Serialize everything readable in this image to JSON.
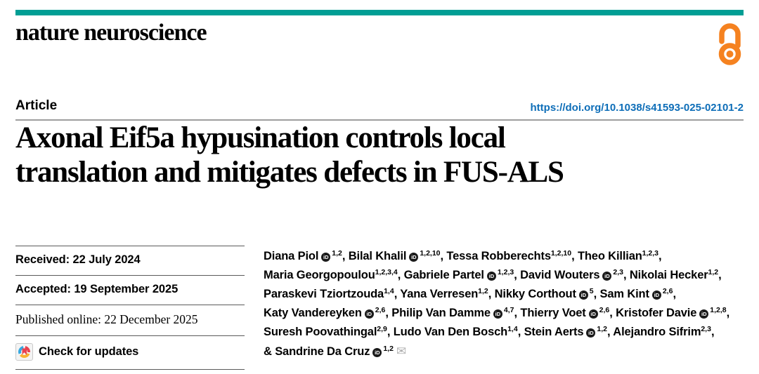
{
  "masthead": {
    "journal": "nature neuroscience"
  },
  "article": {
    "kicker": "Article",
    "doi": "https://doi.org/10.1038/s41593-025-02101-2",
    "title": "Axonal Eif5a hypusination controls local\ntranslation and mitigates defects in FUS-ALS"
  },
  "dates": [
    {
      "label": "Received",
      "value": "22 July 2024",
      "serif": false
    },
    {
      "label": "Accepted",
      "value": "19 September 2025",
      "serif": false
    },
    {
      "label": "Published online",
      "value": "22 December 2025",
      "serif": true
    }
  ],
  "check_updates": {
    "label": "Check for updates"
  },
  "authors_meta": {
    "separator": ", ",
    "last_author_prefix": "& ",
    "orcid_icon_text": "iD",
    "email_icon": "✉"
  },
  "authors": [
    {
      "name": "Diana Piol",
      "orcid": true,
      "sup": "1,2"
    },
    {
      "name": "Bilal Khalil",
      "orcid": true,
      "sup": "1,2,10"
    },
    {
      "name": "Tessa Robberechts",
      "orcid": false,
      "sup": "1,2,10"
    },
    {
      "name": "Theo Killian",
      "orcid": false,
      "sup": "1,2,3"
    },
    {
      "name": "Maria Georgopoulou",
      "orcid": false,
      "sup": "1,2,3,4"
    },
    {
      "name": "Gabriele Partel",
      "orcid": true,
      "sup": "1,2,3"
    },
    {
      "name": "David Wouters",
      "orcid": true,
      "sup": "2,3"
    },
    {
      "name": "Nikolai Hecker",
      "orcid": false,
      "sup": "1,2"
    },
    {
      "name": "Paraskevi Tziortzouda",
      "orcid": false,
      "sup": "1,4"
    },
    {
      "name": "Yana Verresen",
      "orcid": false,
      "sup": "1,2"
    },
    {
      "name": "Nikky Corthout",
      "orcid": true,
      "sup": "5"
    },
    {
      "name": "Sam Kint",
      "orcid": true,
      "sup": "2,6"
    },
    {
      "name": "Katy Vandereyken",
      "orcid": true,
      "sup": "2,6"
    },
    {
      "name": "Philip Van Damme",
      "orcid": true,
      "sup": "4,7"
    },
    {
      "name": "Thierry Voet",
      "orcid": true,
      "sup": "2,6"
    },
    {
      "name": "Kristofer Davie",
      "orcid": true,
      "sup": "1,2,8"
    },
    {
      "name": "Suresh Poovathingal",
      "orcid": false,
      "sup": "2,9"
    },
    {
      "name": "Ludo Van Den Bosch",
      "orcid": false,
      "sup": "1,4"
    },
    {
      "name": "Stein Aerts",
      "orcid": true,
      "sup": "1,2"
    },
    {
      "name": "Alejandro Sifrim",
      "orcid": false,
      "sup": "2,3"
    },
    {
      "name": "Sandrine Da Cruz",
      "orcid": true,
      "sup": "1,2",
      "corresponding": true
    }
  ],
  "colors": {
    "masthead_bar": "#009e94",
    "doi_link": "#0e6eb8",
    "open_access_orange": "#f58220",
    "header_rule": "#9e9e9e",
    "meta_rule": "#5a5a5a",
    "crossmark_red": "#e8424f",
    "crossmark_blue": "#35a8e0",
    "crossmark_yellow": "#f9b233",
    "envelope_gray": "#b0b0b0",
    "text": "#000000"
  }
}
